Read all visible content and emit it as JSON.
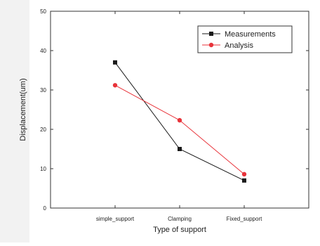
{
  "chart_data": {
    "type": "line",
    "title": "",
    "xlabel": "Type of support",
    "ylabel": "Displacement(um)",
    "categories": [
      "simple_support",
      "Clamping",
      "Fixed_support"
    ],
    "ylim": [
      0,
      50
    ],
    "yticks": [
      0,
      10,
      20,
      30,
      40,
      50
    ],
    "grid": false,
    "legend_position": "top-right",
    "series": [
      {
        "name": "Measurements",
        "values": [
          37,
          15,
          7
        ],
        "color": "#1a1a1a",
        "marker": "square"
      },
      {
        "name": "Analysis",
        "values": [
          31.2,
          22.3,
          8.6
        ],
        "color": "#e8333a",
        "marker": "circle"
      }
    ]
  }
}
